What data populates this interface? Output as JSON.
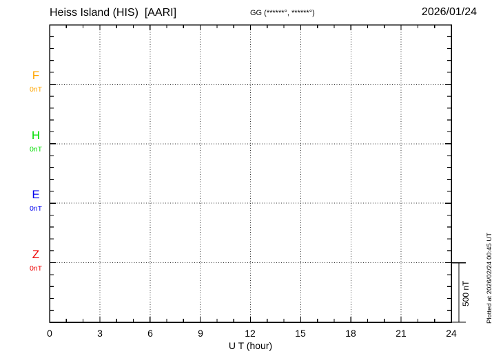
{
  "header": {
    "station_title": "Heiss Island (HIS)  [AARI]",
    "gg_coords": "GG (******°, ******°)",
    "date": "2026/01/24"
  },
  "chart_data": {
    "type": "line",
    "title": "Heiss Island (HIS) [AARI] magnetogram 2026/01/24",
    "xlabel": "U T (hour)",
    "x_range_hours": [
      0,
      24
    ],
    "x_tick_labels": [
      "0",
      "3",
      "6",
      "9",
      "12",
      "15",
      "18",
      "21",
      "24"
    ],
    "x_minor_tick_interval_hours": 1,
    "grid": {
      "vertical_dotted_every_hours": 3,
      "horizontal_dotted_at": "component baselines (0 nT each)"
    },
    "series": [
      {
        "name": "F",
        "baseline_label": "0nT",
        "color": "#FFA500",
        "values": []
      },
      {
        "name": "H",
        "baseline_label": "0nT",
        "color": "#00DD00",
        "values": []
      },
      {
        "name": "E",
        "baseline_label": "0nT",
        "color": "#0000EE",
        "values": []
      },
      {
        "name": "Z",
        "baseline_label": "0nT",
        "color": "#EE0000",
        "values": []
      }
    ],
    "no_data_plotted": true,
    "scale_bar": {
      "label": "500 nT"
    }
  },
  "footer": {
    "plotted_at": "Plotted at 2026/02/24 00:45 UT"
  }
}
